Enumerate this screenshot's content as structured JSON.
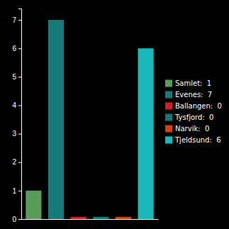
{
  "chart_data": {
    "type": "bar",
    "categories": [
      null,
      null,
      null,
      null,
      null,
      null
    ],
    "series": [
      {
        "name": "Samlet:  1",
        "color": "#5a9a5a",
        "values": [
          1,
          null,
          null,
          null,
          null,
          null
        ]
      },
      {
        "name": "Evenes:  7",
        "color": "#167a78",
        "values": [
          null,
          7,
          null,
          null,
          null,
          null
        ]
      },
      {
        "name": "Ballangen:  0",
        "color": "#cc2222",
        "values": [
          null,
          null,
          0.08,
          null,
          null,
          null
        ]
      },
      {
        "name": "Tysfjord:  0",
        "color": "#157878",
        "values": [
          null,
          null,
          null,
          0.08,
          null,
          null
        ]
      },
      {
        "name": "Narvik:  0",
        "color": "#cc4411",
        "values": [
          null,
          null,
          null,
          null,
          0.08,
          null
        ]
      },
      {
        "name": "Tjeldsund:  6",
        "color": "#1ab8b8",
        "values": [
          null,
          null,
          null,
          null,
          null,
          6
        ]
      }
    ],
    "stacked": true,
    "ylim": [
      0,
      7.4
    ],
    "yticks": [
      0,
      1,
      2,
      3,
      4,
      5,
      6,
      7
    ],
    "tick_labels": "y",
    "legend": "right",
    "grid": false
  }
}
